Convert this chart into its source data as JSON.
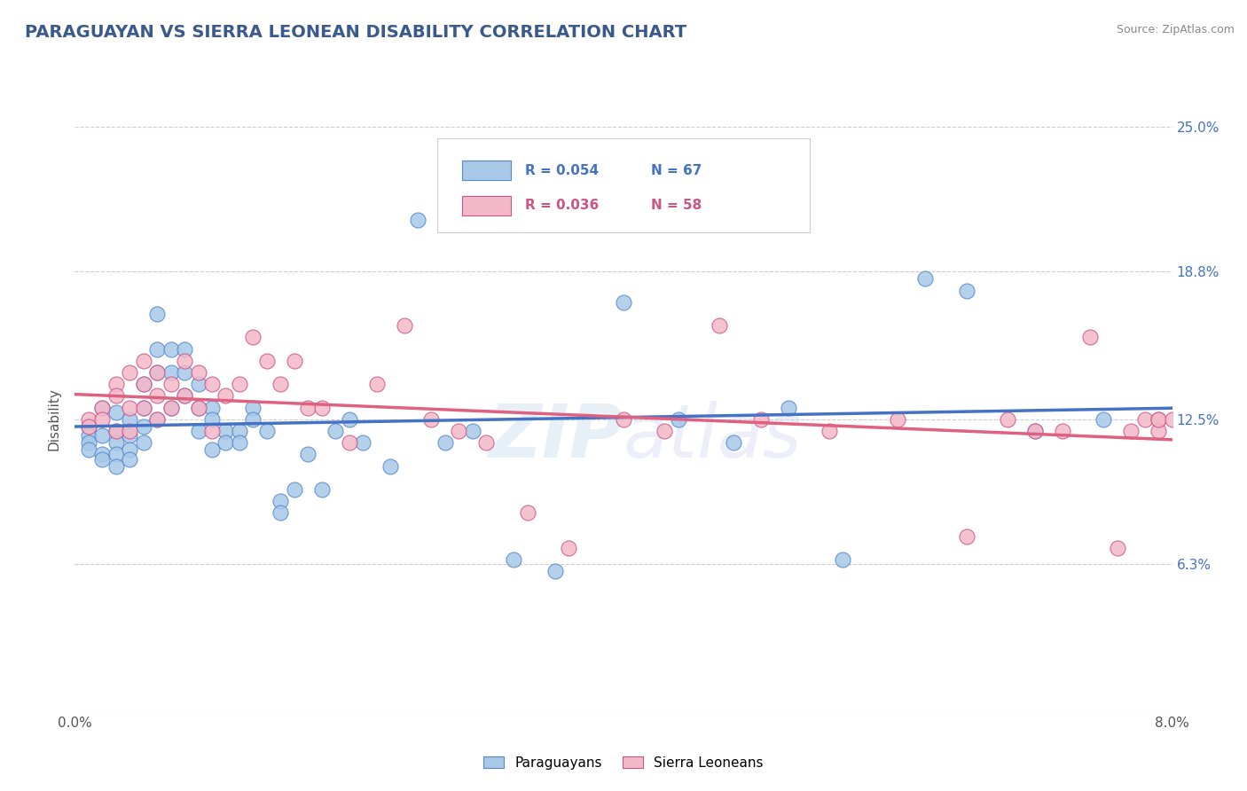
{
  "title": "PARAGUAYAN VS SIERRA LEONEAN DISABILITY CORRELATION CHART",
  "source_text": "Source: ZipAtlas.com",
  "ylabel": "Disability",
  "watermark": "ZIPAtlas",
  "x_min": 0.0,
  "x_max": 0.08,
  "y_min": 0.0,
  "y_max": 0.25,
  "y_ticks": [
    0.0,
    0.063,
    0.125,
    0.188,
    0.25
  ],
  "y_tick_labels": [
    "",
    "6.3%",
    "12.5%",
    "18.8%",
    "25.0%"
  ],
  "paraguayan_color": "#a8c8e8",
  "paraguayan_edge": "#5588cc",
  "sierra_leonean_color": "#f4b8c8",
  "sierra_leonean_edge": "#cc5588",
  "trend_paraguayan": "#4472c4",
  "trend_sierra": "#e06080",
  "legend_color_blue": "#4472c4",
  "legend_color_pink": "#cc5588",
  "legend_R_paraguayan": "R = 0.054",
  "legend_N_paraguayan": "N = 67",
  "legend_R_sierra": "R = 0.036",
  "legend_N_sierra": "N = 58",
  "paraguayan_x": [
    0.001,
    0.001,
    0.001,
    0.001,
    0.002,
    0.002,
    0.002,
    0.002,
    0.003,
    0.003,
    0.003,
    0.003,
    0.003,
    0.004,
    0.004,
    0.004,
    0.004,
    0.005,
    0.005,
    0.005,
    0.005,
    0.006,
    0.006,
    0.006,
    0.006,
    0.007,
    0.007,
    0.007,
    0.008,
    0.008,
    0.008,
    0.009,
    0.009,
    0.009,
    0.01,
    0.01,
    0.01,
    0.011,
    0.011,
    0.012,
    0.012,
    0.013,
    0.013,
    0.014,
    0.015,
    0.015,
    0.016,
    0.017,
    0.018,
    0.019,
    0.02,
    0.021,
    0.023,
    0.025,
    0.027,
    0.029,
    0.032,
    0.035,
    0.04,
    0.044,
    0.048,
    0.052,
    0.056,
    0.062,
    0.065,
    0.07,
    0.075
  ],
  "paraguayan_y": [
    0.122,
    0.118,
    0.115,
    0.112,
    0.13,
    0.118,
    0.11,
    0.108,
    0.128,
    0.12,
    0.115,
    0.11,
    0.105,
    0.125,
    0.118,
    0.112,
    0.108,
    0.14,
    0.13,
    0.122,
    0.115,
    0.17,
    0.155,
    0.145,
    0.125,
    0.155,
    0.145,
    0.13,
    0.155,
    0.145,
    0.135,
    0.14,
    0.13,
    0.12,
    0.13,
    0.125,
    0.112,
    0.12,
    0.115,
    0.12,
    0.115,
    0.13,
    0.125,
    0.12,
    0.09,
    0.085,
    0.095,
    0.11,
    0.095,
    0.12,
    0.125,
    0.115,
    0.105,
    0.21,
    0.115,
    0.12,
    0.065,
    0.06,
    0.175,
    0.125,
    0.115,
    0.13,
    0.065,
    0.185,
    0.18,
    0.12,
    0.125
  ],
  "sierra_x": [
    0.001,
    0.001,
    0.002,
    0.002,
    0.003,
    0.003,
    0.003,
    0.004,
    0.004,
    0.004,
    0.005,
    0.005,
    0.005,
    0.006,
    0.006,
    0.006,
    0.007,
    0.007,
    0.008,
    0.008,
    0.009,
    0.009,
    0.01,
    0.01,
    0.011,
    0.012,
    0.013,
    0.014,
    0.015,
    0.016,
    0.017,
    0.018,
    0.02,
    0.022,
    0.024,
    0.026,
    0.028,
    0.03,
    0.033,
    0.036,
    0.04,
    0.043,
    0.047,
    0.05,
    0.055,
    0.06,
    0.065,
    0.068,
    0.07,
    0.072,
    0.074,
    0.076,
    0.077,
    0.078,
    0.079,
    0.079,
    0.079,
    0.08
  ],
  "sierra_y": [
    0.125,
    0.122,
    0.13,
    0.125,
    0.14,
    0.135,
    0.12,
    0.145,
    0.13,
    0.12,
    0.15,
    0.14,
    0.13,
    0.145,
    0.135,
    0.125,
    0.14,
    0.13,
    0.15,
    0.135,
    0.145,
    0.13,
    0.14,
    0.12,
    0.135,
    0.14,
    0.16,
    0.15,
    0.14,
    0.15,
    0.13,
    0.13,
    0.115,
    0.14,
    0.165,
    0.125,
    0.12,
    0.115,
    0.085,
    0.07,
    0.125,
    0.12,
    0.165,
    0.125,
    0.12,
    0.125,
    0.075,
    0.125,
    0.12,
    0.12,
    0.16,
    0.07,
    0.12,
    0.125,
    0.125,
    0.12,
    0.125,
    0.125
  ]
}
